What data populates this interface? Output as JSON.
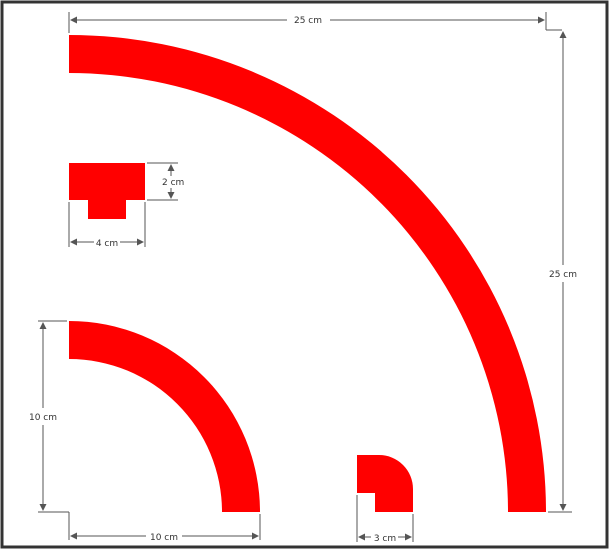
{
  "colors": {
    "shape_fill": "#ff0000",
    "dimension_line": "#555555",
    "frame_border": "#333333",
    "background": "#ffffff"
  },
  "labels": {
    "large_arc_width": "25 cm",
    "large_arc_height": "25 cm",
    "profile_height": "2 cm",
    "profile_width": "4 cm",
    "medium_arc_height": "10 cm",
    "medium_arc_width": "10 cm",
    "small_arc_width": "3 cm"
  }
}
